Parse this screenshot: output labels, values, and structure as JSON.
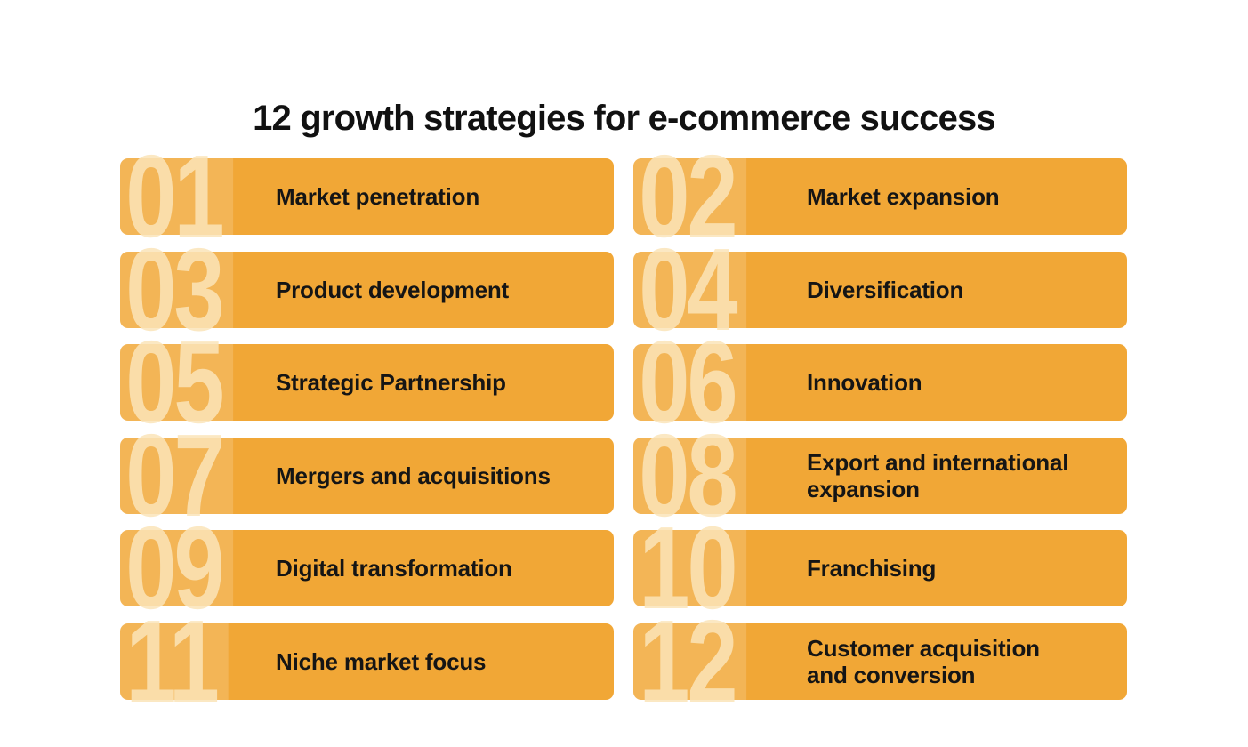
{
  "title": "12 growth strategies for e-commerce success",
  "colors": {
    "background": "#FFFFFF",
    "card_orange": "#F1A736",
    "number_cream": "rgba(250,228,185,0.85)",
    "number_band": "rgba(255,255,255,0.16)",
    "title_black": "#111111",
    "label_black": "#151515"
  },
  "cards": [
    {
      "number": "01",
      "label": "Market penetration"
    },
    {
      "number": "02",
      "label": "Market expansion"
    },
    {
      "number": "03",
      "label": "Product development"
    },
    {
      "number": "04",
      "label": "Diversification"
    },
    {
      "number": "05",
      "label": "Strategic Partnership"
    },
    {
      "number": "06",
      "label": "Innovation"
    },
    {
      "number": "07",
      "label": "Mergers and acquisitions"
    },
    {
      "number": "08",
      "label": "Export and international\nexpansion"
    },
    {
      "number": "09",
      "label": "Digital transformation"
    },
    {
      "number": "10",
      "label": "Franchising"
    },
    {
      "number": "11",
      "label": "Niche market focus"
    },
    {
      "number": "12",
      "label": "Customer acquisition\nand conversion"
    }
  ]
}
